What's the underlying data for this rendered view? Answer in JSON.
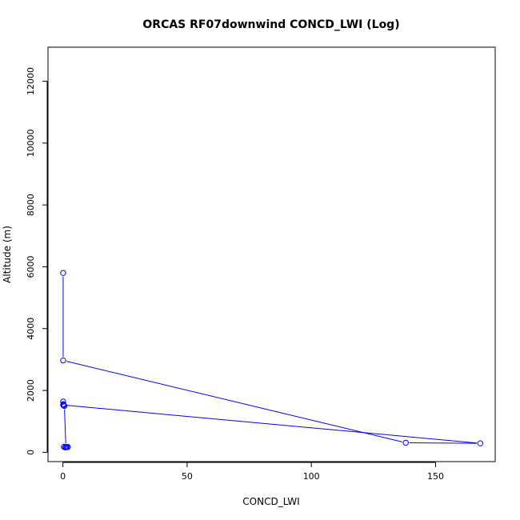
{
  "chart_data": {
    "type": "scatter",
    "title": "ORCAS RF07downwind CONCD_LWI (Log)",
    "xlabel": "CONCD_LWI",
    "ylabel": "Altitude (m)",
    "xlim": [
      -6,
      174
    ],
    "ylim": [
      -300,
      13100
    ],
    "xticks": [
      0,
      50,
      100,
      150
    ],
    "yticks": [
      0,
      2000,
      4000,
      6000,
      8000,
      10000,
      12000
    ],
    "grid": false,
    "legend": "none",
    "colors": {
      "series": "#0000ff",
      "axes": "#000000",
      "background": "#ffffff"
    },
    "series": [
      {
        "points": [
          {
            "x": 0.1,
            "y": 5800
          },
          {
            "x": 0.1,
            "y": 2970
          },
          {
            "x": 138,
            "y": 310
          },
          {
            "x": 168,
            "y": 290
          },
          {
            "x": 0.1,
            "y": 1530
          },
          {
            "x": 0.1,
            "y": 1640
          },
          {
            "x": 0.2,
            "y": 1560
          },
          {
            "x": 0.3,
            "y": 1520
          },
          {
            "x": 0.6,
            "y": 1500
          },
          {
            "x": 1.2,
            "y": 170
          },
          {
            "x": 2.0,
            "y": 175
          },
          {
            "x": 0.4,
            "y": 180
          },
          {
            "x": 0.9,
            "y": 160
          },
          {
            "x": 1.6,
            "y": 165
          }
        ]
      }
    ]
  }
}
